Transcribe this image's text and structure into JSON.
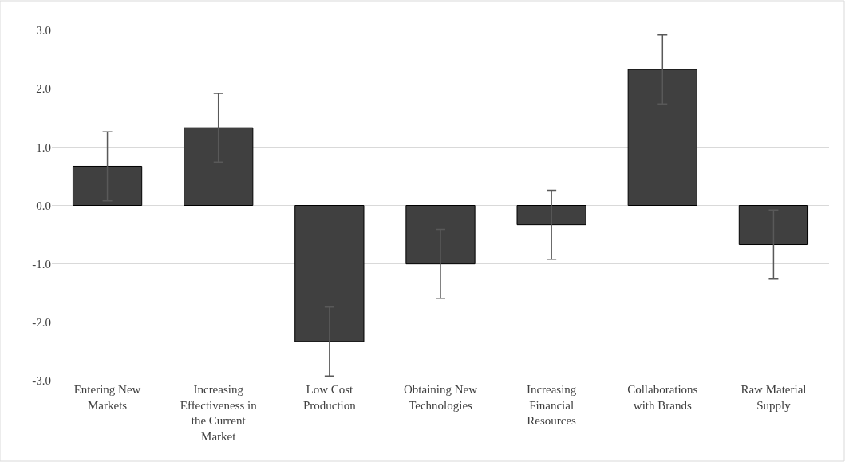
{
  "chart_data": {
    "type": "bar",
    "categories": [
      "Entering New Markets",
      "Increasing Effectiveness in the Current Market",
      "Low Cost Production",
      "Obtaining New Technologies",
      "Increasing Financial Resources",
      "Collaborations with Brands",
      "Raw Material Supply"
    ],
    "values": [
      0.67,
      1.33,
      -2.33,
      -1.0,
      -0.33,
      2.33,
      -0.67
    ],
    "errors": [
      0.59,
      0.59,
      0.59,
      0.59,
      0.59,
      0.59,
      0.59
    ],
    "color": "#404040",
    "ylim": [
      -3,
      3
    ],
    "yticks": [
      {
        "value": -3,
        "label": "-3.0"
      },
      {
        "value": -2,
        "label": "-2.0"
      },
      {
        "value": -1,
        "label": "-1.0"
      },
      {
        "value": 0,
        "label": "0.0"
      },
      {
        "value": 1,
        "label": "1.0"
      },
      {
        "value": 2,
        "label": "2.0"
      },
      {
        "value": 3,
        "label": "3.0"
      }
    ],
    "grid": "y",
    "legend": false
  }
}
